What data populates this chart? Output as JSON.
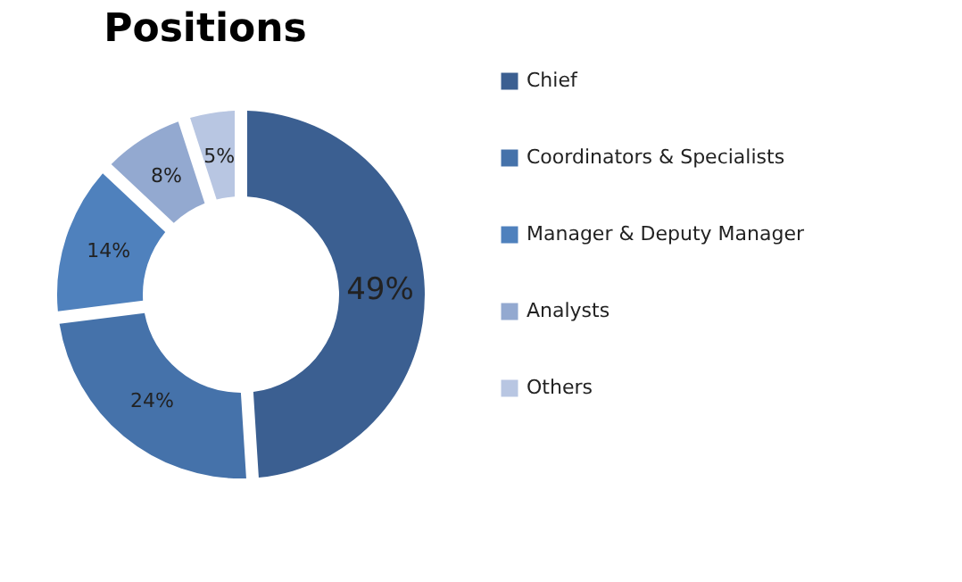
{
  "chart_data": {
    "type": "donut",
    "title": "Positions",
    "categories": [
      "Chief",
      "Coordinators & Specialists",
      "Manager & Deputy Manager",
      "Analysts",
      "Others"
    ],
    "values": [
      49,
      24,
      14,
      8,
      5
    ],
    "colors": [
      "#3b5f91",
      "#4572aa",
      "#4f81bd",
      "#93a9d0",
      "#b8c6e2"
    ],
    "value_labels": [
      "49%",
      "24%",
      "14%",
      "8%",
      "5%"
    ],
    "legend": "right"
  }
}
